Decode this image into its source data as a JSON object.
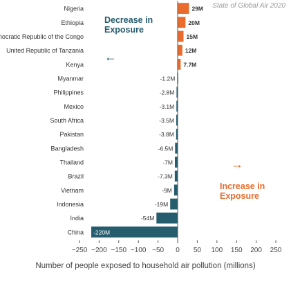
{
  "chart_data": {
    "type": "bar",
    "orientation": "horizontal",
    "credit": "State of Global Air 2020",
    "categories": [
      "Nigeria",
      "Ethiopia",
      "Democratic Republic of the Congo",
      "United Republic of Tanzania",
      "Kenya",
      "Myanmar",
      "Philippines",
      "Mexico",
      "South Africa",
      "Pakistan",
      "Bangladesh",
      "Thailand",
      "Brazil",
      "Vietnam",
      "Indonesia",
      "India",
      "China"
    ],
    "values": [
      29,
      20,
      15,
      12,
      7.7,
      -1.2,
      -2.8,
      -3.1,
      -3.5,
      -3.8,
      -6.5,
      -7,
      -7.3,
      -9,
      -19,
      -54,
      -220
    ],
    "data_labels": [
      "29M",
      "20M",
      "15M",
      "12M",
      "7.7M",
      "-1.2M",
      "-2.8M",
      "-3.1M",
      "-3.5M",
      "-3.8M",
      "-6.5M",
      "-7M",
      "-7.3M",
      "-9M",
      "-19M",
      "-54M",
      "-220M"
    ],
    "xlabel": "Number of people exposed to household air pollution (millions)",
    "ylabel": "",
    "xlim": [
      -250,
      250
    ],
    "xticks": [
      -250,
      -200,
      -150,
      -100,
      -50,
      0,
      50,
      100,
      150,
      200,
      250
    ],
    "xtick_labels": [
      "−250",
      "−200",
      "−150",
      "−100",
      "−50",
      "0",
      "50",
      "100",
      "150",
      "200",
      "250"
    ],
    "grid": false,
    "colors": {
      "increase": "#ea6b2c",
      "decrease": "#255c6e",
      "axis": "#555555",
      "text": "#333333"
    },
    "annotations": {
      "decrease": {
        "line1": "Decrease in",
        "line2": "Exposure",
        "arrow": "←"
      },
      "increase": {
        "line1": "Increase in",
        "line2": "Exposure",
        "arrow": "→"
      }
    }
  }
}
